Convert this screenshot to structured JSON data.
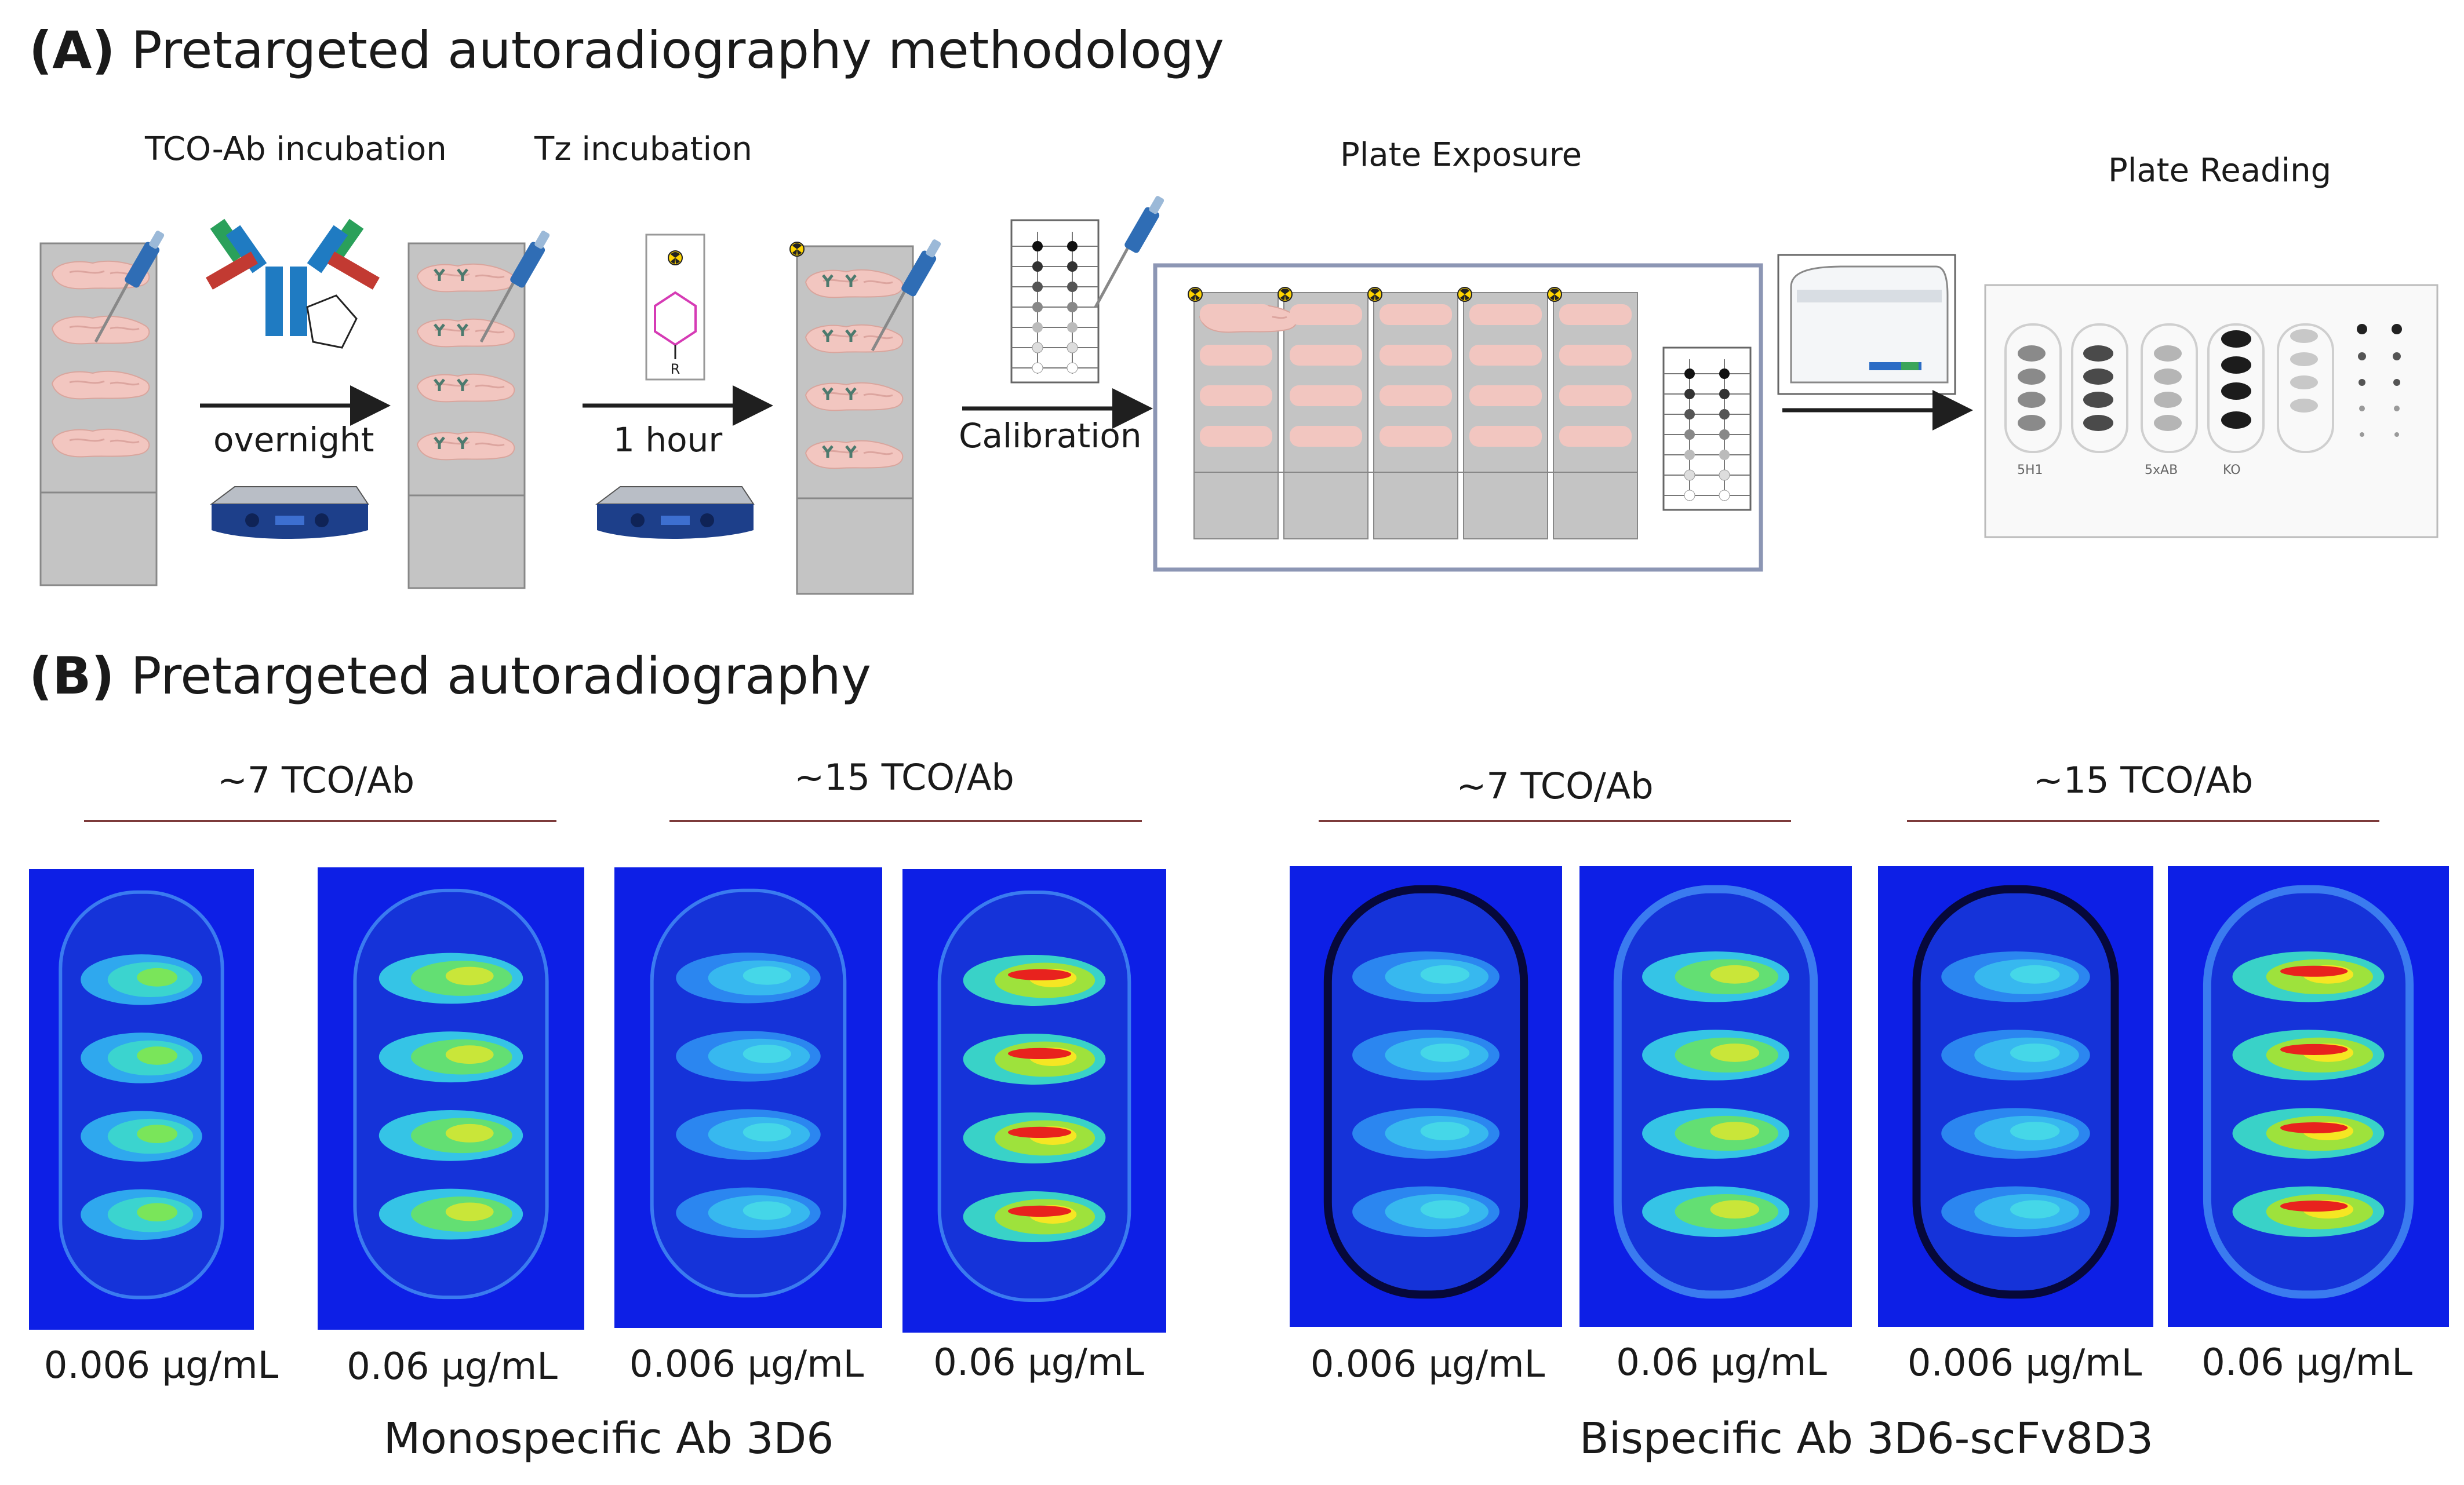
{
  "panel_a": {
    "letter": "(A)",
    "title": "Pretargeted autoradiography methodology",
    "steps": {
      "tco_ab_incubation": "TCO-Ab incubation",
      "tz_incubation": "Tz incubation",
      "plate_exposure": "Plate Exposure",
      "plate_reading": "Plate Reading"
    },
    "arrows": {
      "overnight": "overnight",
      "one_hour": "1 hour",
      "calibration": "Calibration"
    },
    "tz_structure_label": "R",
    "reader_film_labels": [
      "5H1",
      "5xAB",
      "KO"
    ]
  },
  "panel_b": {
    "letter": "(B)",
    "title": "Pretargeted autoradiography",
    "groups": [
      {
        "label": "~7 TCO/Ab"
      },
      {
        "label": "~15 TCO/Ab"
      },
      {
        "label": "~7 TCO/Ab"
      },
      {
        "label": "~15 TCO/Ab"
      }
    ],
    "images": [
      {
        "concentration": "0.006 μg/mL",
        "signal": "medium"
      },
      {
        "concentration": "0.06 μg/mL",
        "signal": "medium-high"
      },
      {
        "concentration": "0.006 μg/mL",
        "signal": "low"
      },
      {
        "concentration": "0.06 μg/mL",
        "signal": "high"
      },
      {
        "concentration": "0.006 μg/mL",
        "signal": "low"
      },
      {
        "concentration": "0.06 μg/mL",
        "signal": "medium-high"
      },
      {
        "concentration": "0.006 μg/mL",
        "signal": "low"
      },
      {
        "concentration": "0.06 μg/mL",
        "signal": "high"
      }
    ],
    "footers": {
      "monospecific": "Monospecific Ab 3D6",
      "bispecific": "Bispecific Ab 3D6-scFv8D3"
    }
  },
  "colors": {
    "slide": "#c4c4c4",
    "brain": "#f2c6c0",
    "arrow": "#1f1f1f",
    "rule": "#7d3b3b",
    "image_bg": "#0d1fe6",
    "frame": "#8c96b4"
  }
}
